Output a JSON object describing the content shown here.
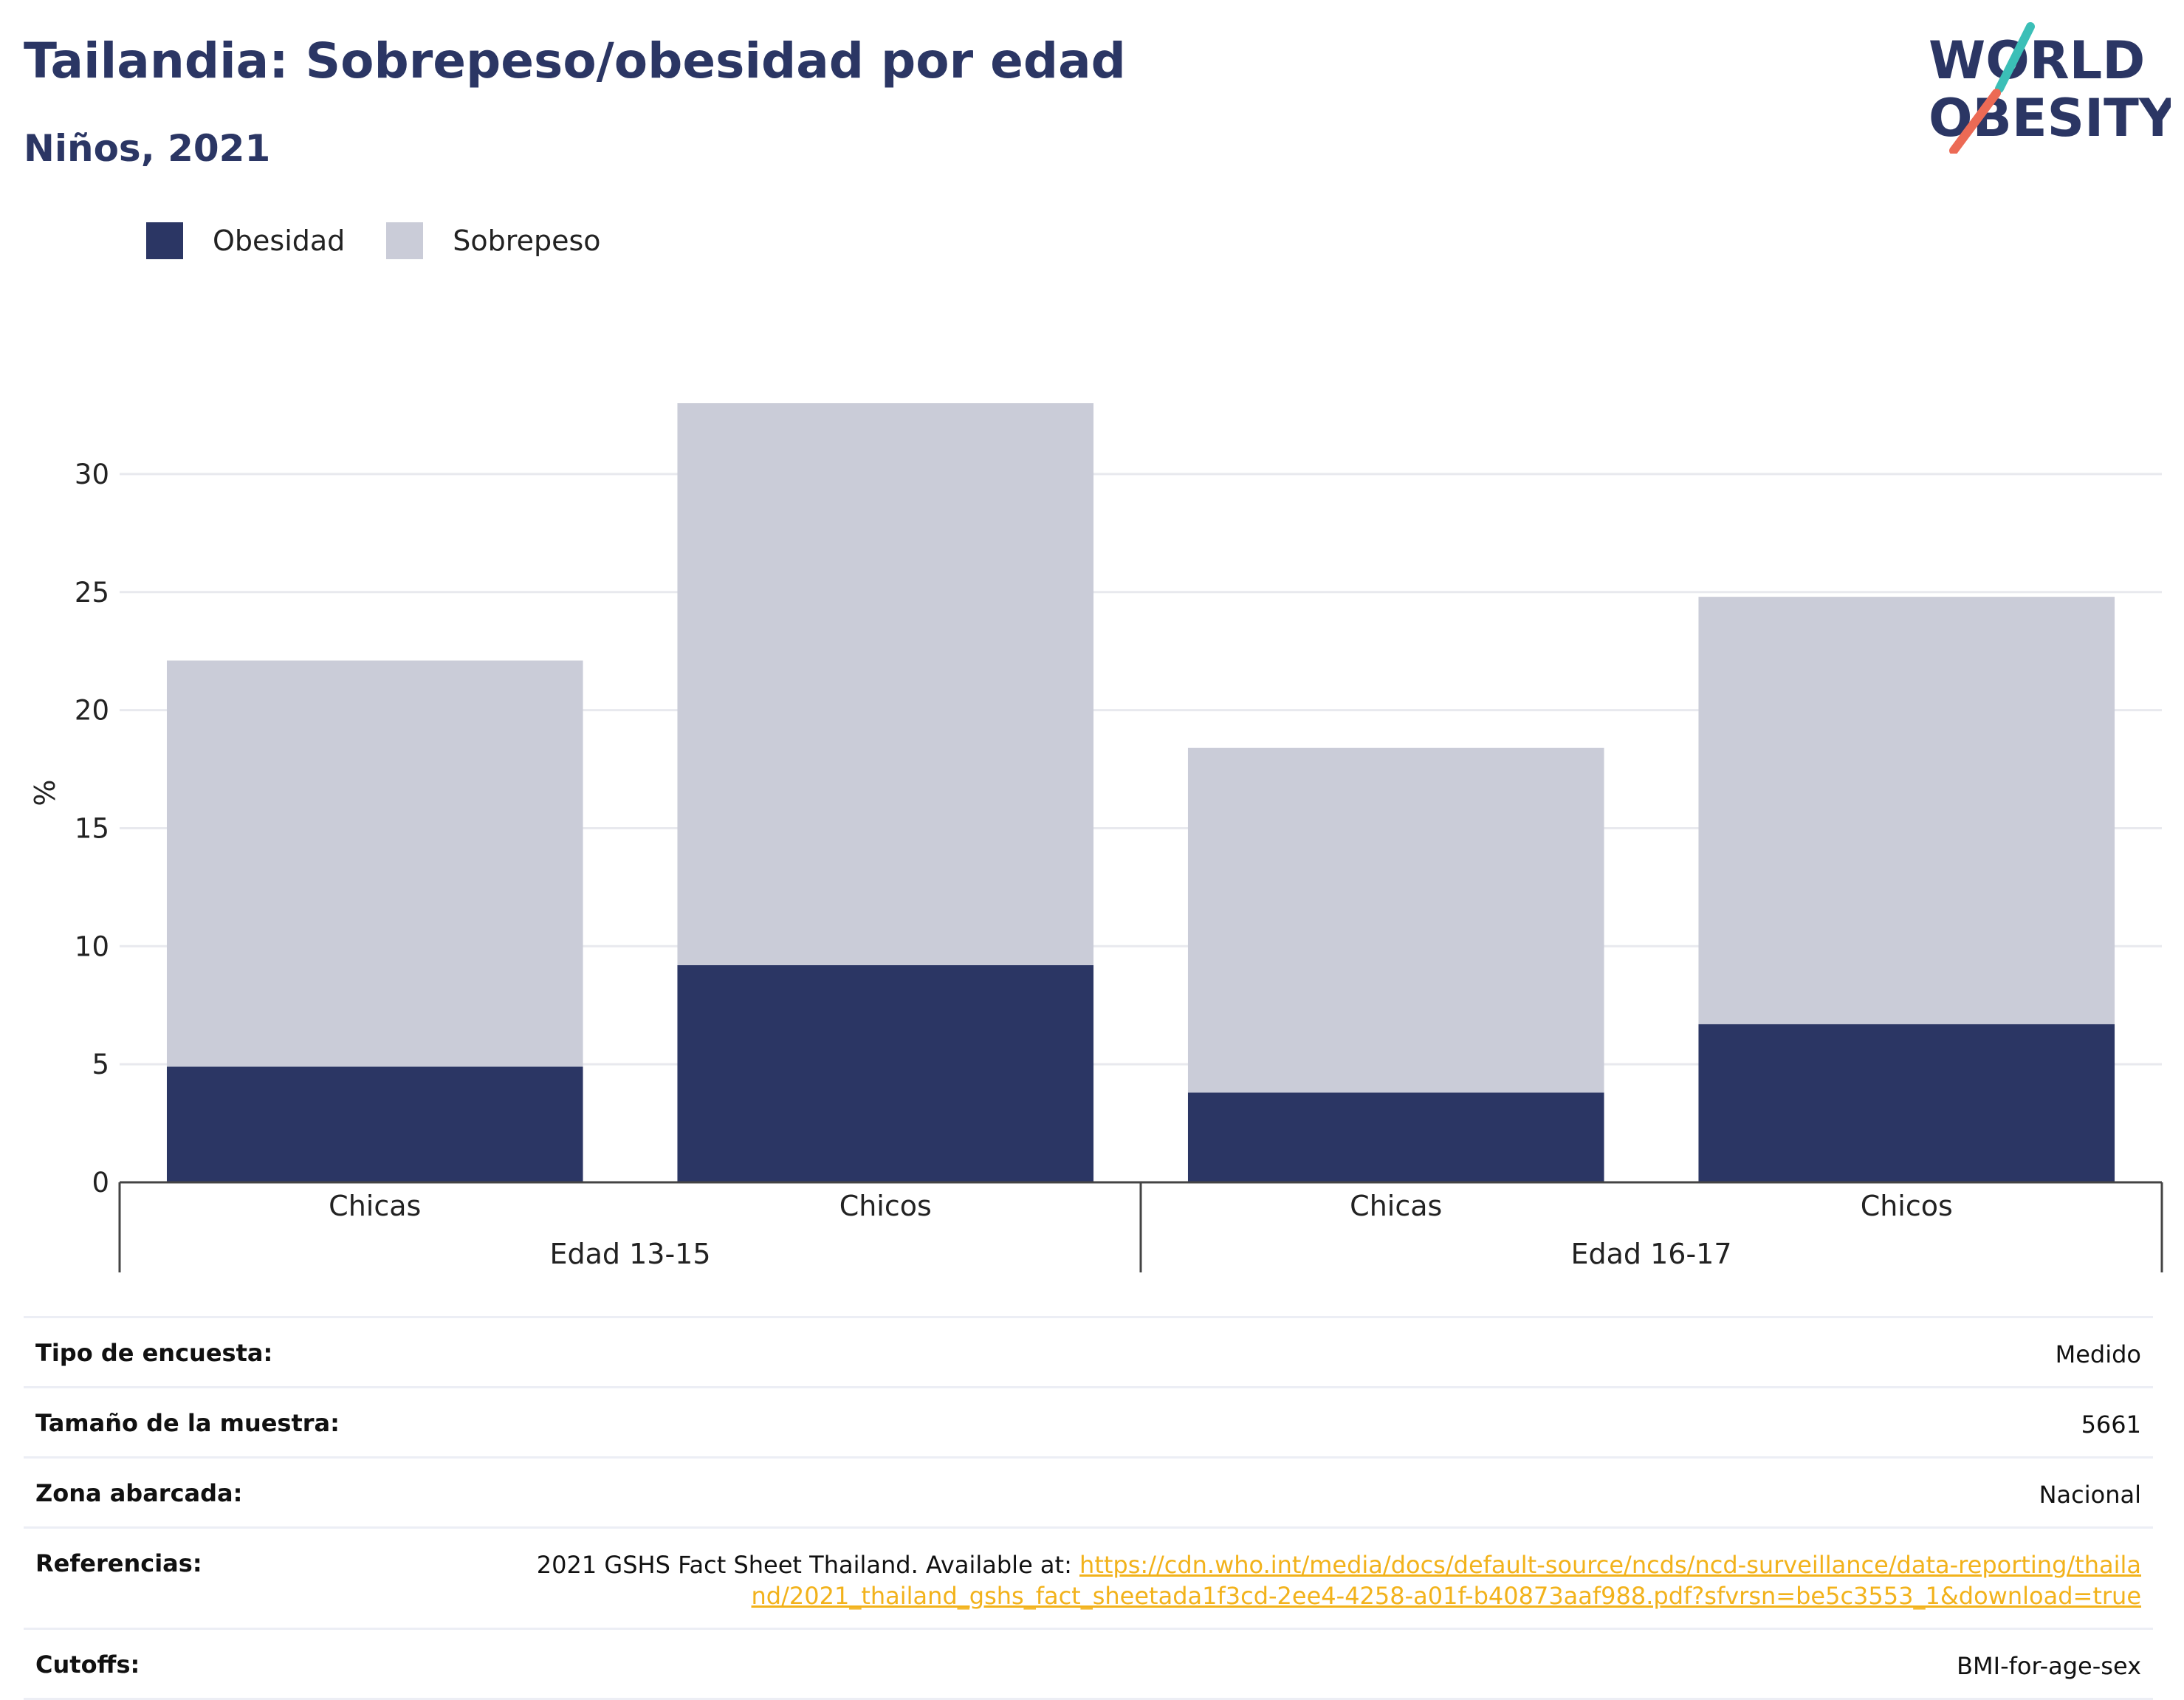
{
  "header": {
    "title": "Tailandia: Sobrepeso/obesidad por edad",
    "subtitle": "Niños, 2021"
  },
  "logo": {
    "line1": "WORLD",
    "line2": "OBESITY",
    "colors": {
      "text": "#2b3664",
      "slash_teal": "#3bbfb7",
      "slash_coral": "#ec6a55"
    }
  },
  "chart_data": {
    "type": "bar",
    "stacked": true,
    "ylabel": "%",
    "ylim": [
      0,
      33
    ],
    "yticks": [
      0,
      5,
      10,
      15,
      20,
      25,
      30
    ],
    "grid": true,
    "legend_position": "top-left",
    "categories": [
      "Chicas",
      "Chicos",
      "Chicas",
      "Chicos"
    ],
    "groups": [
      {
        "label": "Edad 13-15",
        "categories": [
          "Chicas",
          "Chicos"
        ]
      },
      {
        "label": "Edad 16-17",
        "categories": [
          "Chicas",
          "Chicos"
        ]
      }
    ],
    "series": [
      {
        "name": "Obesidad",
        "color": "#2b3664",
        "values": [
          4.9,
          9.2,
          3.8,
          6.7
        ]
      },
      {
        "name": "Sobrepeso",
        "color": "#caccd8",
        "values": [
          17.2,
          23.8,
          14.6,
          18.1
        ]
      }
    ]
  },
  "info": {
    "rows": [
      {
        "key": "Tipo de encuesta:",
        "value": "Medido"
      },
      {
        "key": "Tamaño de la muestra:",
        "value": "5661"
      },
      {
        "key": "Zona abarcada:",
        "value": "Nacional"
      },
      {
        "key": "Referencias:",
        "value": "2021 GSHS Fact Sheet Thailand. Available at: ",
        "link": "https://cdn.who.int/media/docs/default-source/ncds/ncd-surveillance/data-reporting/thailand/2021_thailand_gshs_fact_sheetada1f3cd-2ee4-4258-a01f-b40873aaf988.pdf?sfvrsn=be5c3553_1&download=true"
      },
      {
        "key": "Cutoffs:",
        "value": "BMI-for-age-sex"
      }
    ]
  }
}
